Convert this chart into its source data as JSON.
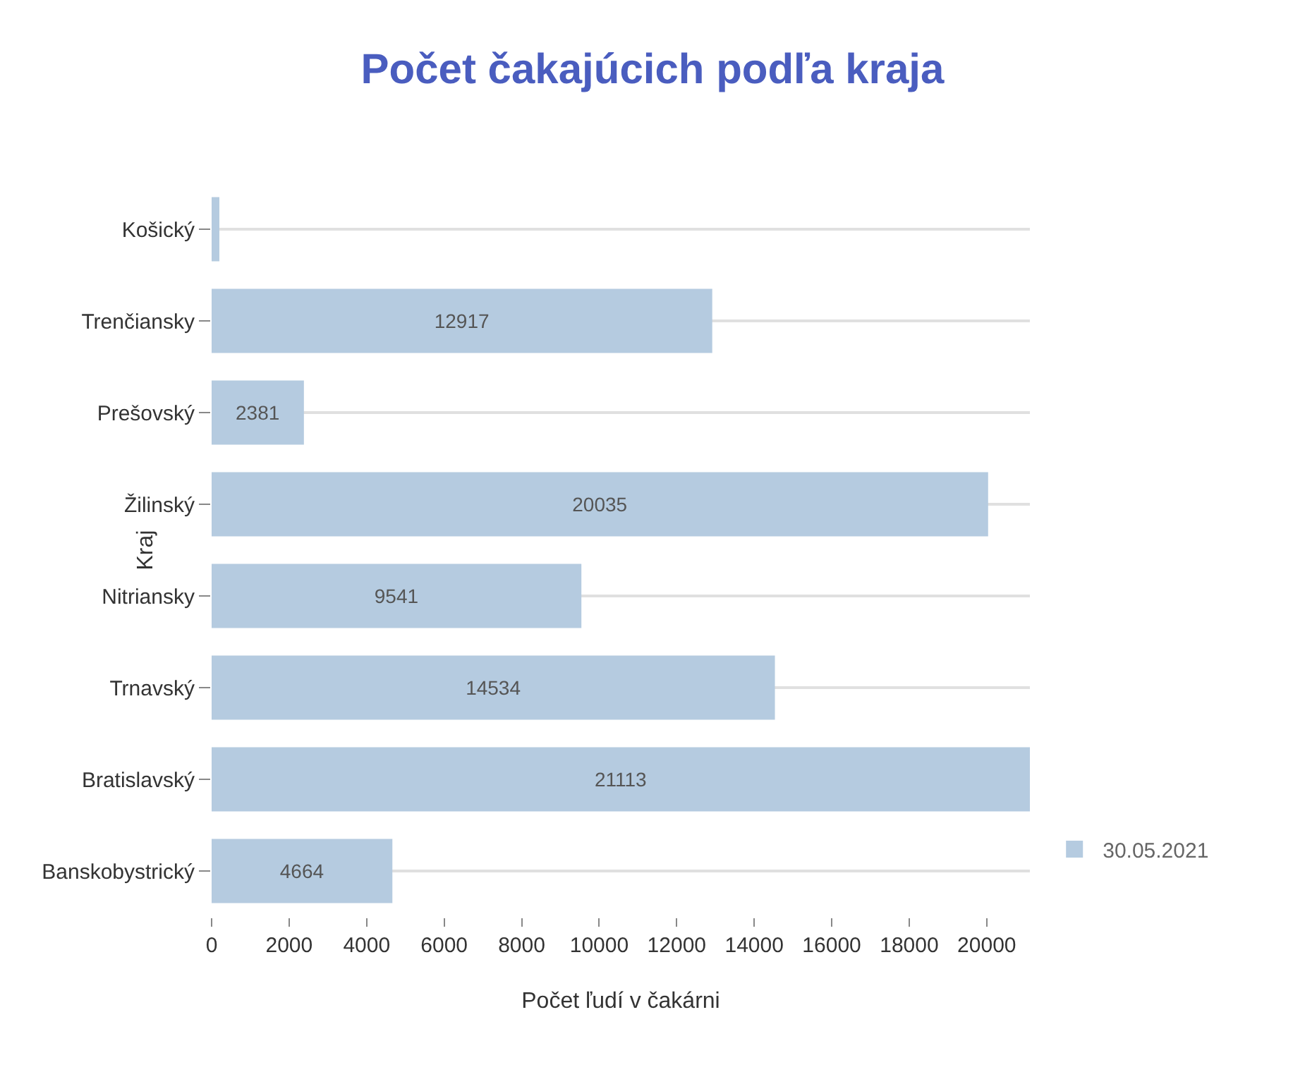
{
  "chart_data": {
    "type": "bar",
    "orientation": "horizontal",
    "title": "Počet čakajúcich podľa kraja",
    "xlabel": "Počet ľudí v čakárni",
    "ylabel": "Kraj",
    "categories": [
      "Košický",
      "Trenčiansky",
      "Prešovský",
      "Žilinský",
      "Nitriansky",
      "Trnavský",
      "Bratislavský",
      "Banskobystrický"
    ],
    "series": [
      {
        "name": "30.05.2021",
        "color": "#b5cbe0",
        "values": [
          200,
          12917,
          2381,
          20035,
          9541,
          14534,
          21113,
          4664
        ],
        "value_labels": [
          null,
          "12917",
          "2381",
          "20035",
          "9541",
          "14534",
          "21113",
          "4664"
        ]
      }
    ],
    "xlim": [
      0,
      21113
    ],
    "xticks": [
      0,
      2000,
      4000,
      6000,
      8000,
      10000,
      12000,
      14000,
      16000,
      18000,
      20000
    ],
    "grid": "y",
    "legend": "bottom right"
  }
}
